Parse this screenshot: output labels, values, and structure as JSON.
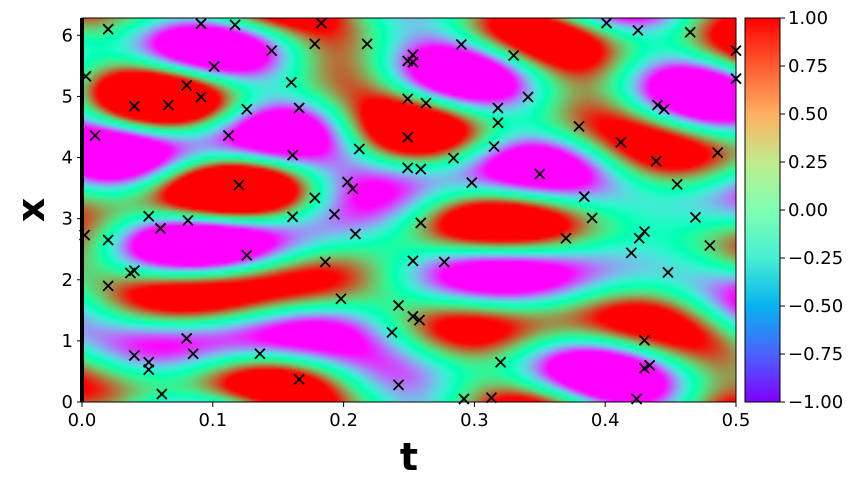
{
  "chart_data": {
    "type": "heatmap",
    "xlabel": "t",
    "ylabel": "x",
    "xlim": [
      0.0,
      0.5
    ],
    "ylim": [
      0.0,
      6.283
    ],
    "x_ticks": [
      "0.0",
      "0.1",
      "0.2",
      "0.3",
      "0.4",
      "0.5"
    ],
    "y_ticks": [
      "0",
      "1",
      "2",
      "3",
      "4",
      "5",
      "6"
    ],
    "colorbar": {
      "colormap": "rainbow",
      "range": [
        -1.0,
        1.0
      ],
      "ticks": [
        "1.00",
        "0.75",
        "0.50",
        "0.25",
        "0.00",
        "−0.25",
        "−0.50",
        "−0.75",
        "−1.00"
      ]
    },
    "marker": "x",
    "marker_color": "#000000",
    "points": [
      [
        0.02,
        6.1
      ],
      [
        0.091,
        6.19
      ],
      [
        0.117,
        6.17
      ],
      [
        0.183,
        6.2
      ],
      [
        0.401,
        6.2
      ],
      [
        0.425,
        6.08
      ],
      [
        0.465,
        6.05
      ],
      [
        0.003,
        5.33
      ],
      [
        0.101,
        5.49
      ],
      [
        0.145,
        5.75
      ],
      [
        0.178,
        5.86
      ],
      [
        0.218,
        5.86
      ],
      [
        0.249,
        5.58
      ],
      [
        0.253,
        5.68
      ],
      [
        0.253,
        5.56
      ],
      [
        0.29,
        5.85
      ],
      [
        0.33,
        5.67
      ],
      [
        0.5,
        5.75
      ],
      [
        0.5,
        5.29
      ],
      [
        0.08,
        5.18
      ],
      [
        0.16,
        5.23
      ],
      [
        0.04,
        4.84
      ],
      [
        0.066,
        4.86
      ],
      [
        0.091,
        4.99
      ],
      [
        0.126,
        4.79
      ],
      [
        0.166,
        4.81
      ],
      [
        0.249,
        4.96
      ],
      [
        0.263,
        4.89
      ],
      [
        0.318,
        4.81
      ],
      [
        0.341,
        4.99
      ],
      [
        0.01,
        4.36
      ],
      [
        0.112,
        4.36
      ],
      [
        0.318,
        4.57
      ],
      [
        0.249,
        4.33
      ],
      [
        0.315,
        4.18
      ],
      [
        0.38,
        4.51
      ],
      [
        0.412,
        4.25
      ],
      [
        0.44,
        4.86
      ],
      [
        0.445,
        4.79
      ],
      [
        0.212,
        4.14
      ],
      [
        0.161,
        4.04
      ],
      [
        0.284,
        3.99
      ],
      [
        0.249,
        3.83
      ],
      [
        0.259,
        3.81
      ],
      [
        0.439,
        3.94
      ],
      [
        0.486,
        4.08
      ],
      [
        0.12,
        3.55
      ],
      [
        0.203,
        3.6
      ],
      [
        0.207,
        3.49
      ],
      [
        0.298,
        3.59
      ],
      [
        0.35,
        3.73
      ],
      [
        0.455,
        3.56
      ],
      [
        0.178,
        3.34
      ],
      [
        0.384,
        3.36
      ],
      [
        0.051,
        3.04
      ],
      [
        0.081,
        2.97
      ],
      [
        0.161,
        3.03
      ],
      [
        0.193,
        3.07
      ],
      [
        0.39,
        3.01
      ],
      [
        0.469,
        3.02
      ],
      [
        0.06,
        2.84
      ],
      [
        0.259,
        2.93
      ],
      [
        0.002,
        2.73
      ],
      [
        0.02,
        2.65
      ],
      [
        0.209,
        2.75
      ],
      [
        0.37,
        2.68
      ],
      [
        0.426,
        2.68
      ],
      [
        0.43,
        2.79
      ],
      [
        0.48,
        2.56
      ],
      [
        0.42,
        2.44
      ],
      [
        0.126,
        2.4
      ],
      [
        0.186,
        2.29
      ],
      [
        0.253,
        2.31
      ],
      [
        0.277,
        2.29
      ],
      [
        0.037,
        2.11
      ],
      [
        0.04,
        2.15
      ],
      [
        0.448,
        2.12
      ],
      [
        0.02,
        1.9
      ],
      [
        0.198,
        1.69
      ],
      [
        0.242,
        1.58
      ],
      [
        0.253,
        1.4
      ],
      [
        0.258,
        1.34
      ],
      [
        0.237,
        1.14
      ],
      [
        0.08,
        1.04
      ],
      [
        0.43,
        1.01
      ],
      [
        0.04,
        0.76
      ],
      [
        0.085,
        0.79
      ],
      [
        0.136,
        0.79
      ],
      [
        0.051,
        0.65
      ],
      [
        0.051,
        0.53
      ],
      [
        0.32,
        0.65
      ],
      [
        0.43,
        0.55
      ],
      [
        0.434,
        0.6
      ],
      [
        0.166,
        0.37
      ],
      [
        0.242,
        0.28
      ],
      [
        0.061,
        0.13
      ],
      [
        0.292,
        0.05
      ],
      [
        0.313,
        0.07
      ],
      [
        0.424,
        0.05
      ]
    ]
  }
}
